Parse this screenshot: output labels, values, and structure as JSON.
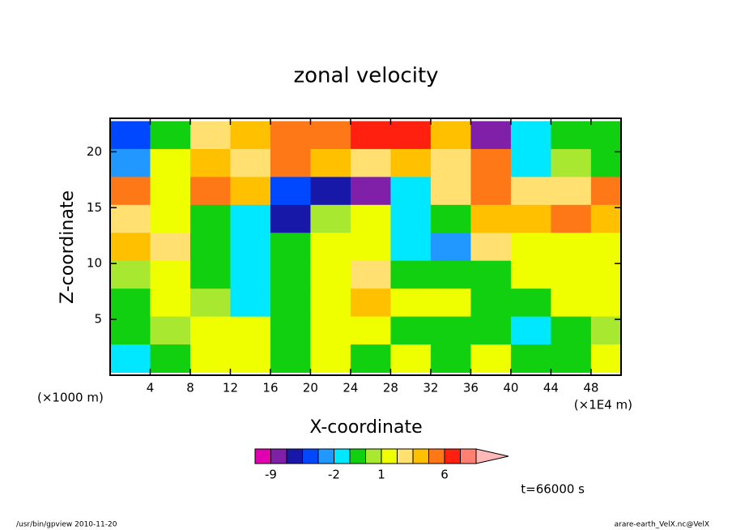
{
  "chart_data": {
    "type": "heatmap",
    "title": "zonal velocity",
    "xlabel": "X-coordinate",
    "ylabel": "Z-coordinate",
    "y_unit_label": "(×1000 m)",
    "x_unit_label": "(×1E4 m)",
    "annotation": "t=66000 s",
    "xlim": [
      0,
      51
    ],
    "ylim": [
      0,
      23
    ],
    "xticks": [
      4,
      8,
      12,
      16,
      20,
      24,
      28,
      32,
      36,
      40,
      44,
      48
    ],
    "yticks": [
      5,
      10,
      15,
      20
    ],
    "x": [
      2,
      6,
      10,
      14,
      18,
      22,
      26,
      30,
      34,
      38,
      42,
      46,
      50
    ],
    "y": [
      21.5,
      19,
      16.5,
      14,
      11.5,
      9,
      6.5,
      4,
      1.5
    ],
    "z": [
      [
        -3.5,
        -0.5,
        2.5,
        3.5,
        5,
        5,
        7,
        7,
        3.5,
        -7,
        -1.5,
        -0.5,
        -0.5
      ],
      [
        -2.5,
        1.5,
        3.5,
        2.5,
        5,
        3.5,
        2.5,
        3.5,
        2.5,
        5,
        -1.5,
        0.5,
        -0.5
      ],
      [
        5,
        1.5,
        5,
        3.5,
        -3.5,
        -5,
        -7,
        -1.5,
        2.5,
        5,
        2.5,
        2.5,
        5
      ],
      [
        2.5,
        1.5,
        -0.5,
        -1.5,
        -5,
        0.5,
        1.5,
        -1.5,
        -0.5,
        3.5,
        3.5,
        5,
        3.5
      ],
      [
        3.5,
        2.5,
        -0.5,
        -1.5,
        -0.5,
        1.5,
        1.5,
        -1.5,
        -2.5,
        2.5,
        1.5,
        1.5,
        1.5
      ],
      [
        0.5,
        1.5,
        -0.5,
        -1.5,
        -0.5,
        1.5,
        2.5,
        -0.5,
        -0.5,
        -0.5,
        1.5,
        1.5,
        1.5
      ],
      [
        -0.5,
        1.5,
        0.5,
        -1.5,
        -0.5,
        1.5,
        3.5,
        1.5,
        1.5,
        -0.5,
        -0.5,
        1.5,
        1.5
      ],
      [
        -0.5,
        0.5,
        1.5,
        1.5,
        -0.5,
        1.5,
        1.5,
        -0.5,
        -0.5,
        -0.5,
        -1.5,
        -0.5,
        0.5
      ],
      [
        -1.5,
        -0.5,
        1.5,
        1.5,
        -0.5,
        1.5,
        -0.5,
        1.5,
        -0.5,
        1.5,
        -0.5,
        -0.5,
        1.5
      ]
    ],
    "colorbar": {
      "levels": [
        -15,
        -9,
        -6,
        -4,
        -3,
        -2,
        -1,
        0,
        1,
        2,
        3,
        4,
        6,
        9,
        15
      ],
      "colors": [
        "#e000b0",
        "#8020a8",
        "#1818a8",
        "#0048ff",
        "#2098ff",
        "#00e8ff",
        "#10d010",
        "#a8e830",
        "#f0ff00",
        "#ffe070",
        "#ffc000",
        "#ff7818",
        "#ff2010",
        "#ff8070"
      ],
      "extend_color": "#ffb8b8",
      "ticks": [
        -9,
        -2,
        1,
        6
      ]
    }
  },
  "footer": {
    "left": "/usr/bin/gpview  2010-11-20",
    "right": "arare-earth_VelX.nc@VelX"
  }
}
